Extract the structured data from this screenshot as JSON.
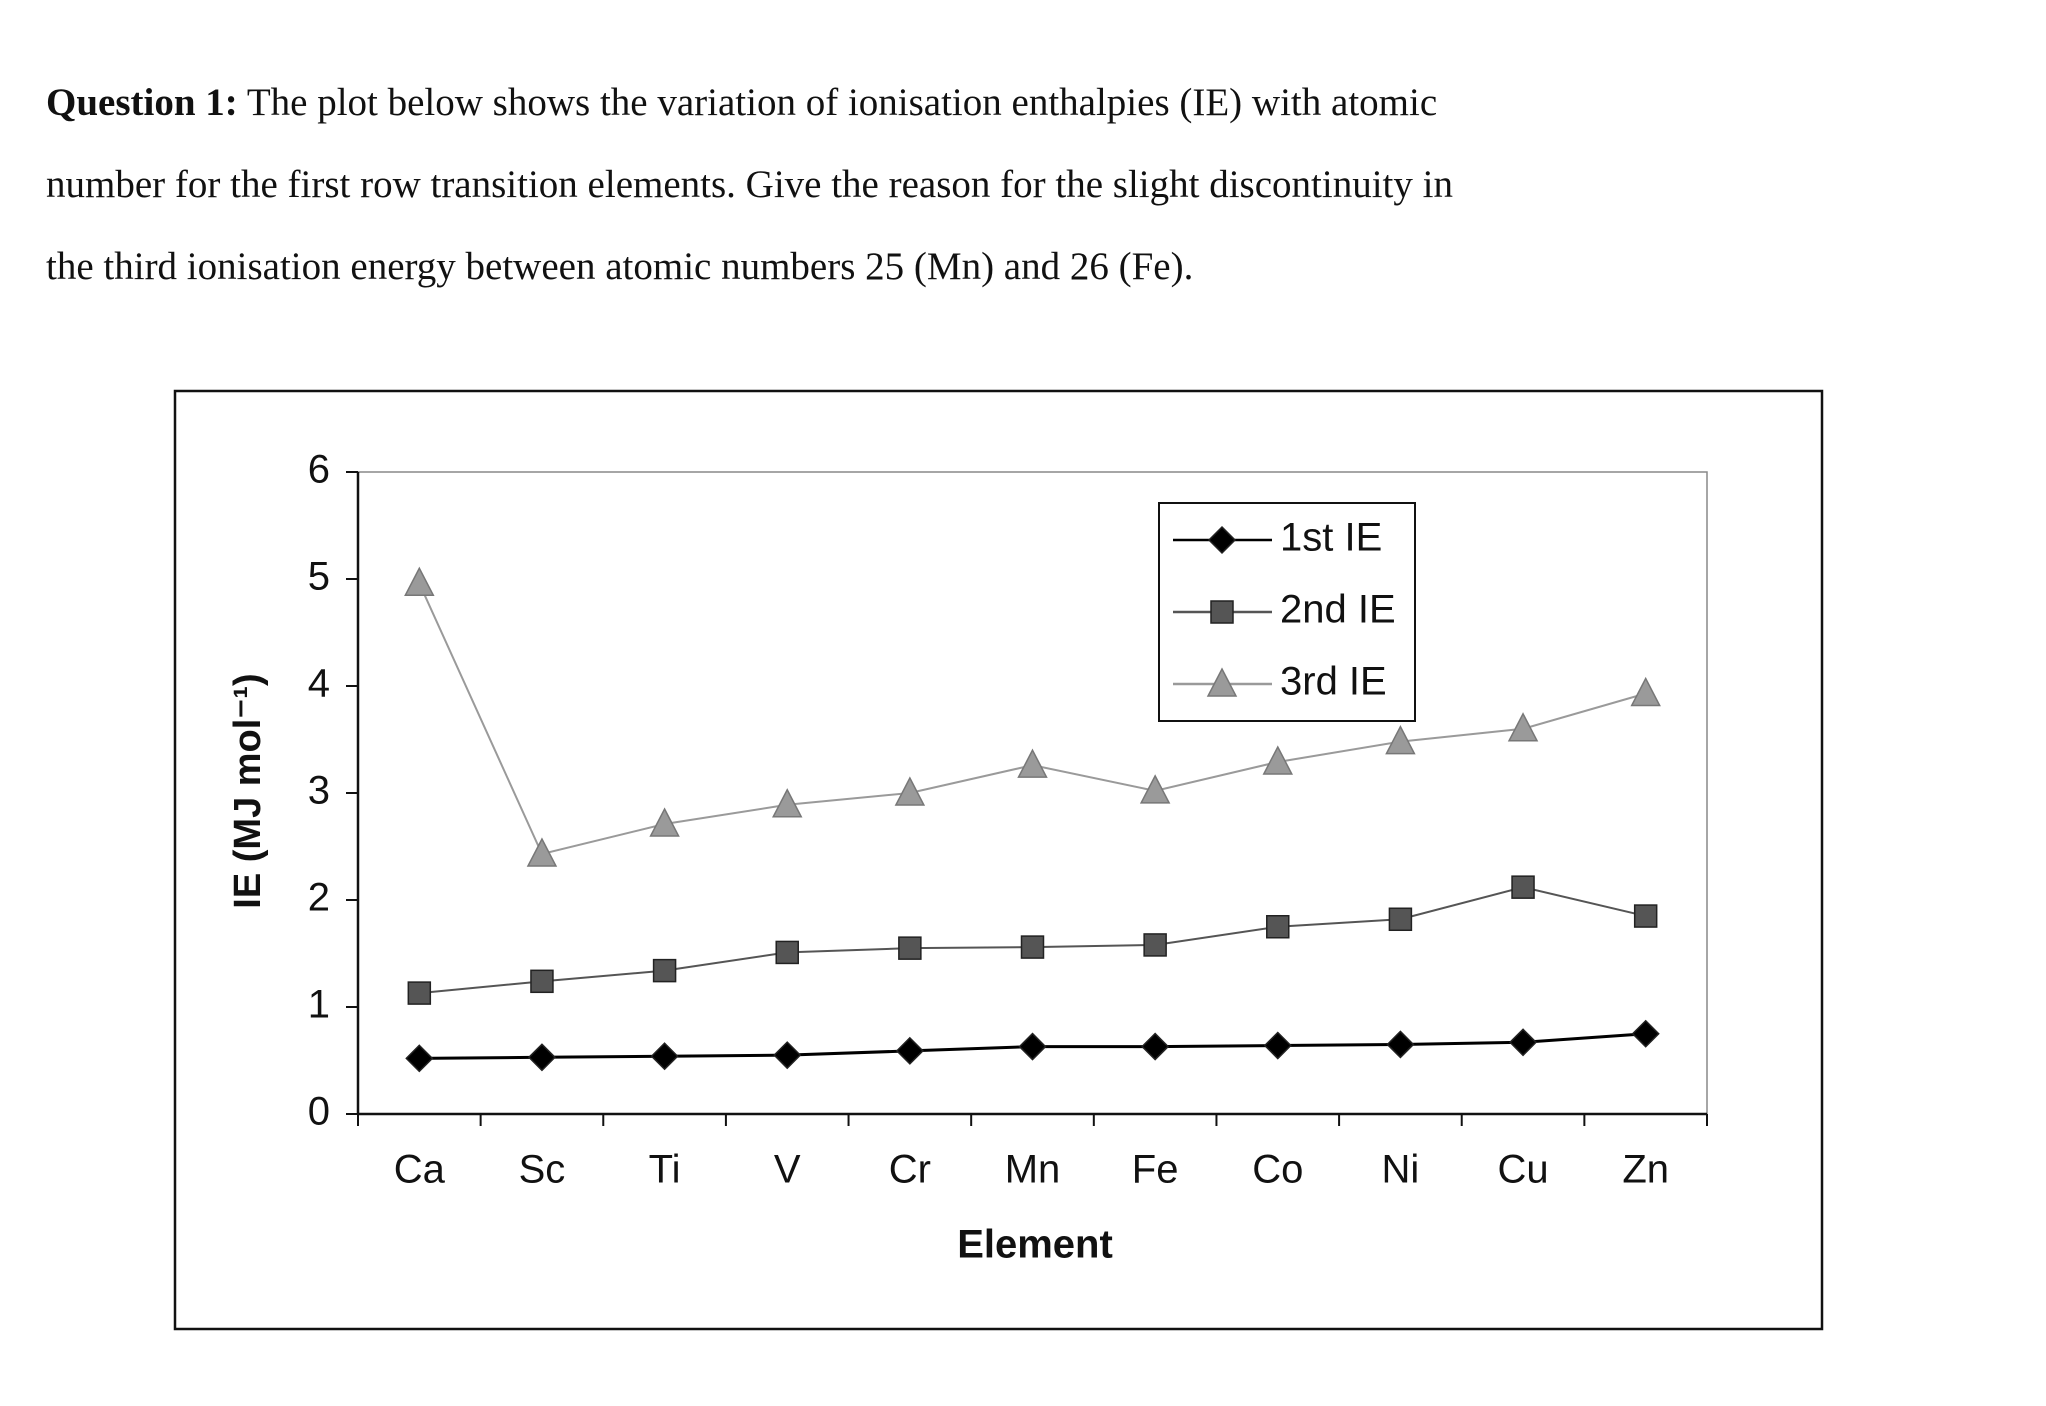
{
  "question": {
    "label": "Question 1:",
    "lines": [
      "The plot below shows the variation of ionisation enthalpies (IE) with atomic",
      "number for the first row transition elements. Give the reason for the slight discontinuity in",
      "the third ionisation energy between atomic numbers 25 (Mn) and 26 (Fe)."
    ]
  },
  "chart_data": {
    "type": "line",
    "x_label": "Element",
    "y_label": "IE (MJ mol⁻¹)",
    "categories": [
      "Ca",
      "Sc",
      "Ti",
      "V",
      "Cr",
      "Mn",
      "Fe",
      "Co",
      "Ni",
      "Cu",
      "Zn"
    ],
    "series": [
      {
        "name": "1st IE",
        "color": "#000000",
        "marker": "diamond",
        "values": [
          0.52,
          0.53,
          0.54,
          0.55,
          0.59,
          0.63,
          0.63,
          0.64,
          0.65,
          0.67,
          0.75
        ]
      },
      {
        "name": "2nd IE",
        "color": "#555555",
        "marker": "square",
        "values": [
          1.13,
          1.24,
          1.34,
          1.51,
          1.55,
          1.56,
          1.58,
          1.75,
          1.82,
          2.12,
          1.85
        ]
      },
      {
        "name": "3rd IE",
        "color": "#9a9a9a",
        "marker": "triangle",
        "values": [
          4.96,
          2.43,
          2.71,
          2.89,
          3.0,
          3.26,
          3.02,
          3.29,
          3.48,
          3.6,
          3.93
        ]
      }
    ],
    "ylim": [
      0,
      6
    ],
    "yticks": [
      0,
      1,
      2,
      3,
      4,
      5,
      6
    ],
    "grid": false,
    "legend": "top-right"
  }
}
